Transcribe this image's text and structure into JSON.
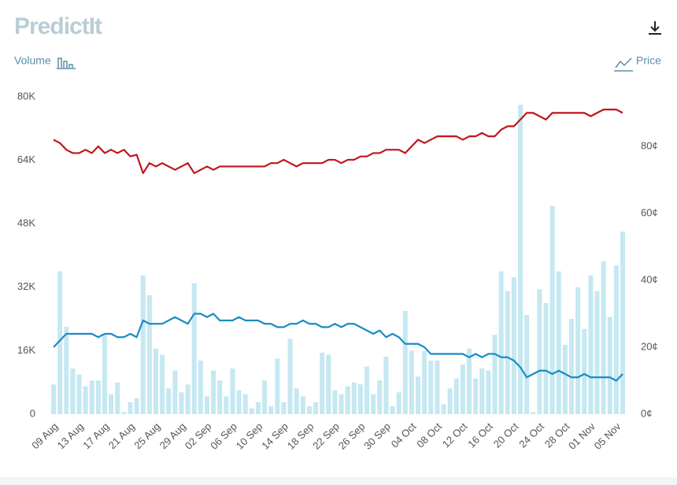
{
  "logo": "PredictIt",
  "chart_data": {
    "type": "bar",
    "y_label": "Volume",
    "y2_label": "Price",
    "categories": [
      "09 Aug",
      null,
      null,
      null,
      "13 Aug",
      null,
      null,
      null,
      "17 Aug",
      null,
      null,
      null,
      "21 Aug",
      null,
      null,
      null,
      "25 Aug",
      null,
      null,
      null,
      "29 Aug",
      null,
      null,
      null,
      "02 Sep",
      null,
      null,
      null,
      "06 Sep",
      null,
      null,
      null,
      "10 Sep",
      null,
      null,
      null,
      "14 Sep",
      null,
      null,
      null,
      "18 Sep",
      null,
      null,
      null,
      "22 Sep",
      null,
      null,
      null,
      "26 Sep",
      null,
      null,
      null,
      "30 Sep",
      null,
      null,
      null,
      "04 Oct",
      null,
      null,
      null,
      "08 Oct",
      null,
      null,
      null,
      "12 Oct",
      null,
      null,
      null,
      "16 Oct",
      null,
      null,
      null,
      "20 Oct",
      null,
      null,
      null,
      "24 Oct",
      null,
      null,
      null,
      "28 Oct",
      null,
      null,
      null,
      "01 Nov",
      null,
      null,
      null,
      "05 Nov",
      null
    ],
    "ylim": [
      0,
      80000
    ],
    "yticks": [
      {
        "value": 0,
        "label": "0"
      },
      {
        "value": 16000,
        "label": "16K"
      },
      {
        "value": 32000,
        "label": "32K"
      },
      {
        "value": 48000,
        "label": "48K"
      },
      {
        "value": 64000,
        "label": "64K"
      },
      {
        "value": 80000,
        "label": "80K"
      }
    ],
    "y2lim": [
      0,
      94.8
    ],
    "y2ticks": [
      {
        "value": 0,
        "label": "0¢"
      },
      {
        "value": 20,
        "label": "20¢"
      },
      {
        "value": 40,
        "label": "40¢"
      },
      {
        "value": 60,
        "label": "60¢"
      },
      {
        "value": 80,
        "label": "80¢"
      }
    ],
    "grid": false,
    "series": [
      {
        "type": "bar",
        "color": "#c5e8f1",
        "values": [
          7500,
          36000,
          22000,
          11500,
          10000,
          7000,
          8500,
          8500,
          20000,
          5000,
          8000,
          500,
          3000,
          4000,
          35000,
          30000,
          16500,
          15000,
          6500,
          11000,
          5500,
          7500,
          33000,
          13500,
          4500,
          11000,
          8500,
          4500,
          11500,
          6000,
          5000,
          1500,
          3000,
          8500,
          2000,
          14000,
          3000,
          19000,
          6500,
          4500,
          2000,
          3000,
          15500,
          15000,
          6000,
          5000,
          7000,
          8000,
          7500,
          12000,
          5000,
          8500,
          14500,
          2000,
          5500,
          26000,
          16000,
          9500,
          16000,
          13500,
          13500,
          2500,
          6500,
          9000,
          12500,
          16500,
          9000,
          11500,
          11000,
          20000,
          36000,
          31000,
          34500,
          78000,
          25000,
          500,
          31500,
          28000,
          52500,
          36000,
          17500,
          24000,
          32000,
          21500,
          35000,
          31000,
          38500,
          24500,
          37500,
          46000
        ]
      },
      {
        "type": "line",
        "axis": "y2",
        "color": "#c0141c",
        "values": [
          82,
          81,
          79,
          78,
          78,
          79,
          78,
          80,
          78,
          79,
          78,
          79,
          77,
          77.5,
          72,
          75,
          74,
          75,
          74,
          73,
          74,
          75,
          72,
          73,
          74,
          73,
          74,
          74,
          74,
          74,
          74,
          74,
          74,
          74,
          75,
          75,
          76,
          75,
          74,
          75,
          75,
          75,
          75,
          76,
          76,
          75,
          76,
          76,
          77,
          77,
          78,
          78,
          79,
          79,
          79,
          78,
          80,
          82,
          81,
          82,
          83,
          83,
          83,
          83,
          82,
          83,
          83,
          84,
          83,
          83,
          85,
          86,
          86,
          88,
          90,
          90,
          89,
          88,
          90,
          90,
          90,
          90,
          90,
          90,
          89,
          90,
          91,
          91,
          91,
          90
        ]
      },
      {
        "type": "line",
        "axis": "y2",
        "color": "#1a8cc4",
        "values": [
          20,
          22,
          24,
          24,
          24,
          24,
          24,
          23,
          24,
          24,
          23,
          23,
          24,
          23,
          28,
          27,
          27,
          27,
          28,
          29,
          28,
          27,
          30,
          30,
          29,
          30,
          28,
          28,
          28,
          29,
          28,
          28,
          28,
          27,
          27,
          26,
          26,
          27,
          27,
          28,
          27,
          27,
          26,
          26,
          27,
          26,
          27,
          27,
          26,
          25,
          24,
          25,
          23,
          24,
          23,
          21,
          21,
          21,
          20,
          18,
          18,
          18,
          18,
          18,
          18,
          17,
          18,
          17,
          18,
          18,
          17,
          17,
          16,
          14,
          11,
          12,
          13,
          13,
          12,
          13,
          12,
          11,
          11,
          12,
          11,
          11,
          11,
          11,
          10,
          12
        ]
      }
    ]
  }
}
